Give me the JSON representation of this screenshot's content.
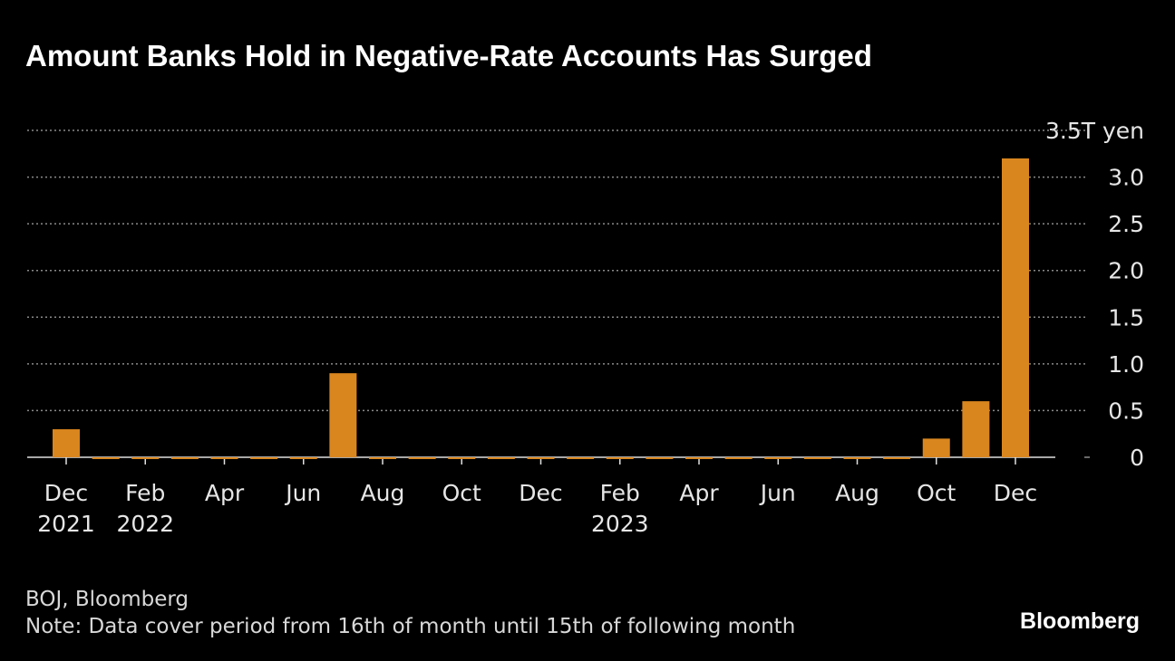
{
  "chart_data": {
    "type": "bar",
    "title": "Amount Banks Hold in Negative-Rate Accounts Has Surged",
    "categories": [
      "Dec 2021",
      null,
      "Feb 2022",
      null,
      "Apr",
      null,
      "Jun",
      null,
      "Aug",
      null,
      "Oct",
      null,
      "Dec",
      null,
      "Feb 2023",
      null,
      "Apr",
      null,
      "Jun",
      null,
      "Aug",
      null,
      "Oct",
      null,
      "Dec"
    ],
    "values": [
      0.3,
      0,
      0,
      0,
      0,
      0,
      0,
      0.9,
      0,
      0,
      0,
      0,
      0,
      0,
      0,
      0,
      0,
      0,
      0,
      0,
      0,
      0,
      0.2,
      0.6,
      3.2
    ],
    "color": "#d9861f",
    "ylim": [
      0,
      3.5
    ],
    "yticks": [
      0,
      0.5,
      {
        "value": 1,
        "label": "1.0"
      },
      1.5,
      {
        "value": 2,
        "label": "2.0"
      },
      2.5,
      {
        "value": 3,
        "label": "3.0"
      },
      {
        "value": 3.5,
        "label": "3.5T yen"
      }
    ],
    "grid": true,
    "source": "BOJ, Bloomberg",
    "note": "Note: Data cover period from 16th of month until 15th of following month",
    "brand": "Bloomberg"
  }
}
